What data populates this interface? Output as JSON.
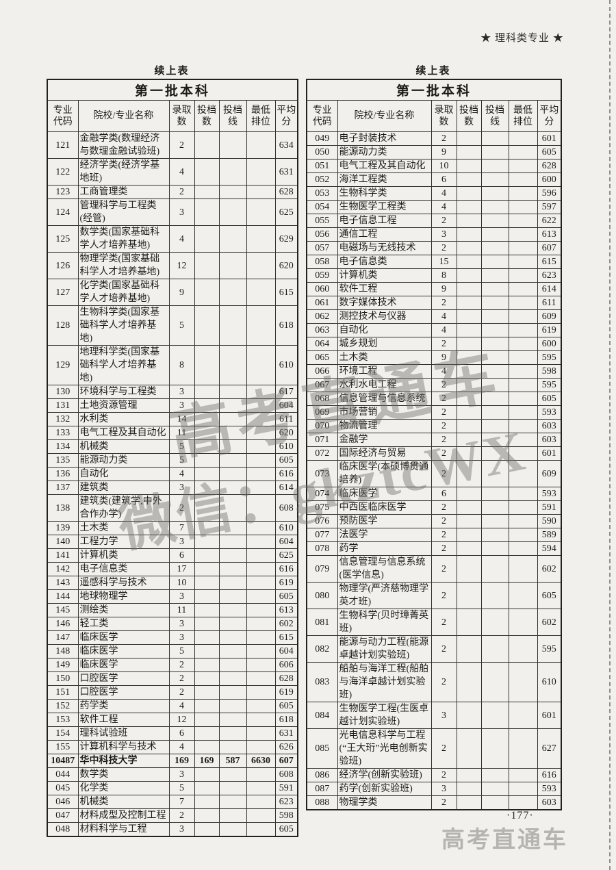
{
  "page": {
    "header_label": "★ 理科类专业 ★",
    "page_number": "·177·",
    "footer_brand": "高考直通车",
    "watermark_line1": "高考直通车",
    "watermark_line2": "微信：gkztcWX"
  },
  "colors": {
    "paper": "#f1f0ed",
    "ink": "#1c1b19",
    "watermark_gray": "#6c6c6a",
    "brand_gray": "#b6b4b0"
  },
  "columns": [
    "专业\n代码",
    "院校/专业名称",
    "录取\n数",
    "投档\n数",
    "投档\n线",
    "最低\n排位",
    "平均\n分"
  ],
  "left_table": {
    "continuation_label": "续上表",
    "title": "第一批本科",
    "rows": [
      {
        "code": "121",
        "name": "金融学类(数理经济与数理金融试验班)",
        "adm": "2",
        "filed": "",
        "line": "",
        "rank": "",
        "avg": "634"
      },
      {
        "code": "122",
        "name": "经济学类(经济学基地班)",
        "adm": "4",
        "filed": "",
        "line": "",
        "rank": "",
        "avg": "631"
      },
      {
        "code": "123",
        "name": "工商管理类",
        "adm": "2",
        "filed": "",
        "line": "",
        "rank": "",
        "avg": "628"
      },
      {
        "code": "124",
        "name": "管理科学与工程类(经管)",
        "adm": "3",
        "filed": "",
        "line": "",
        "rank": "",
        "avg": "625"
      },
      {
        "code": "125",
        "name": "数学类(国家基础科学人才培养基地)",
        "adm": "4",
        "filed": "",
        "line": "",
        "rank": "",
        "avg": "629"
      },
      {
        "code": "126",
        "name": "物理学类(国家基础科学人才培养基地)",
        "adm": "12",
        "filed": "",
        "line": "",
        "rank": "",
        "avg": "620"
      },
      {
        "code": "127",
        "name": "化学类(国家基础科学人才培养基地)",
        "adm": "9",
        "filed": "",
        "line": "",
        "rank": "",
        "avg": "615"
      },
      {
        "code": "128",
        "name": "生物科学类(国家基础科学人才培养基地)",
        "adm": "5",
        "filed": "",
        "line": "",
        "rank": "",
        "avg": "618"
      },
      {
        "code": "129",
        "name": "地理科学类(国家基础科学人才培养基地)",
        "adm": "8",
        "filed": "",
        "line": "",
        "rank": "",
        "avg": "610"
      },
      {
        "code": "130",
        "name": "环境科学与工程类",
        "adm": "3",
        "filed": "",
        "line": "",
        "rank": "",
        "avg": "617"
      },
      {
        "code": "131",
        "name": "土地资源管理",
        "adm": "3",
        "filed": "",
        "line": "",
        "rank": "",
        "avg": "604"
      },
      {
        "code": "132",
        "name": "水利类",
        "adm": "14",
        "filed": "",
        "line": "",
        "rank": "",
        "avg": "611"
      },
      {
        "code": "133",
        "name": "电气工程及其自动化",
        "adm": "11",
        "filed": "",
        "line": "",
        "rank": "",
        "avg": "620"
      },
      {
        "code": "134",
        "name": "机械类",
        "adm": "5",
        "filed": "",
        "line": "",
        "rank": "",
        "avg": "610"
      },
      {
        "code": "135",
        "name": "能源动力类",
        "adm": "5",
        "filed": "",
        "line": "",
        "rank": "",
        "avg": "605"
      },
      {
        "code": "136",
        "name": "自动化",
        "adm": "4",
        "filed": "",
        "line": "",
        "rank": "",
        "avg": "616"
      },
      {
        "code": "137",
        "name": "建筑类",
        "adm": "3",
        "filed": "",
        "line": "",
        "rank": "",
        "avg": "614"
      },
      {
        "code": "138",
        "name": "建筑类(建筑学,中外合作办学)",
        "adm": "2",
        "filed": "",
        "line": "",
        "rank": "",
        "avg": "608"
      },
      {
        "code": "139",
        "name": "土木类",
        "adm": "7",
        "filed": "",
        "line": "",
        "rank": "",
        "avg": "610"
      },
      {
        "code": "140",
        "name": "工程力学",
        "adm": "3",
        "filed": "",
        "line": "",
        "rank": "",
        "avg": "604"
      },
      {
        "code": "141",
        "name": "计算机类",
        "adm": "6",
        "filed": "",
        "line": "",
        "rank": "",
        "avg": "625"
      },
      {
        "code": "142",
        "name": "电子信息类",
        "adm": "17",
        "filed": "",
        "line": "",
        "rank": "",
        "avg": "616"
      },
      {
        "code": "143",
        "name": "遥感科学与技术",
        "adm": "10",
        "filed": "",
        "line": "",
        "rank": "",
        "avg": "619"
      },
      {
        "code": "144",
        "name": "地球物理学",
        "adm": "3",
        "filed": "",
        "line": "",
        "rank": "",
        "avg": "605"
      },
      {
        "code": "145",
        "name": "测绘类",
        "adm": "11",
        "filed": "",
        "line": "",
        "rank": "",
        "avg": "613"
      },
      {
        "code": "146",
        "name": "轻工类",
        "adm": "3",
        "filed": "",
        "line": "",
        "rank": "",
        "avg": "602"
      },
      {
        "code": "147",
        "name": "临床医学",
        "adm": "3",
        "filed": "",
        "line": "",
        "rank": "",
        "avg": "615"
      },
      {
        "code": "148",
        "name": "临床医学",
        "adm": "5",
        "filed": "",
        "line": "",
        "rank": "",
        "avg": "604"
      },
      {
        "code": "149",
        "name": "临床医学",
        "adm": "2",
        "filed": "",
        "line": "",
        "rank": "",
        "avg": "606"
      },
      {
        "code": "150",
        "name": "口腔医学",
        "adm": "2",
        "filed": "",
        "line": "",
        "rank": "",
        "avg": "628"
      },
      {
        "code": "151",
        "name": "口腔医学",
        "adm": "2",
        "filed": "",
        "line": "",
        "rank": "",
        "avg": "619"
      },
      {
        "code": "152",
        "name": "药学类",
        "adm": "4",
        "filed": "",
        "line": "",
        "rank": "",
        "avg": "605"
      },
      {
        "code": "153",
        "name": "软件工程",
        "adm": "12",
        "filed": "",
        "line": "",
        "rank": "",
        "avg": "618"
      },
      {
        "code": "154",
        "name": "理科试验班",
        "adm": "6",
        "filed": "",
        "line": "",
        "rank": "",
        "avg": "631"
      },
      {
        "code": "155",
        "name": "计算机科学与技术",
        "adm": "4",
        "filed": "",
        "line": "",
        "rank": "",
        "avg": "626"
      },
      {
        "code": "10487",
        "name": "华中科技大学",
        "adm": "169",
        "filed": "169",
        "line": "587",
        "rank": "6630",
        "avg": "607",
        "bold": true
      },
      {
        "code": "044",
        "name": "数学类",
        "adm": "3",
        "filed": "",
        "line": "",
        "rank": "",
        "avg": "608"
      },
      {
        "code": "045",
        "name": "化学类",
        "adm": "5",
        "filed": "",
        "line": "",
        "rank": "",
        "avg": "591"
      },
      {
        "code": "046",
        "name": "机械类",
        "adm": "7",
        "filed": "",
        "line": "",
        "rank": "",
        "avg": "623"
      },
      {
        "code": "047",
        "name": "材料成型及控制工程",
        "adm": "2",
        "filed": "",
        "line": "",
        "rank": "",
        "avg": "598"
      },
      {
        "code": "048",
        "name": "材料科学与工程",
        "adm": "3",
        "filed": "",
        "line": "",
        "rank": "",
        "avg": "605"
      }
    ]
  },
  "right_table": {
    "continuation_label": "续上表",
    "title": "第一批本科",
    "rows": [
      {
        "code": "049",
        "name": "电子封装技术",
        "adm": "2",
        "filed": "",
        "line": "",
        "rank": "",
        "avg": "601"
      },
      {
        "code": "050",
        "name": "能源动力类",
        "adm": "9",
        "filed": "",
        "line": "",
        "rank": "",
        "avg": "605"
      },
      {
        "code": "051",
        "name": "电气工程及其自动化",
        "adm": "10",
        "filed": "",
        "line": "",
        "rank": "",
        "avg": "628"
      },
      {
        "code": "052",
        "name": "海洋工程类",
        "adm": "6",
        "filed": "",
        "line": "",
        "rank": "",
        "avg": "600"
      },
      {
        "code": "053",
        "name": "生物科学类",
        "adm": "4",
        "filed": "",
        "line": "",
        "rank": "",
        "avg": "596"
      },
      {
        "code": "054",
        "name": "生物医学工程类",
        "adm": "4",
        "filed": "",
        "line": "",
        "rank": "",
        "avg": "597"
      },
      {
        "code": "055",
        "name": "电子信息工程",
        "adm": "2",
        "filed": "",
        "line": "",
        "rank": "",
        "avg": "622"
      },
      {
        "code": "056",
        "name": "通信工程",
        "adm": "3",
        "filed": "",
        "line": "",
        "rank": "",
        "avg": "613"
      },
      {
        "code": "057",
        "name": "电磁场与无线技术",
        "adm": "2",
        "filed": "",
        "line": "",
        "rank": "",
        "avg": "607"
      },
      {
        "code": "058",
        "name": "电子信息类",
        "adm": "15",
        "filed": "",
        "line": "",
        "rank": "",
        "avg": "615"
      },
      {
        "code": "059",
        "name": "计算机类",
        "adm": "8",
        "filed": "",
        "line": "",
        "rank": "",
        "avg": "623"
      },
      {
        "code": "060",
        "name": "软件工程",
        "adm": "9",
        "filed": "",
        "line": "",
        "rank": "",
        "avg": "614"
      },
      {
        "code": "061",
        "name": "数字媒体技术",
        "adm": "2",
        "filed": "",
        "line": "",
        "rank": "",
        "avg": "611"
      },
      {
        "code": "062",
        "name": "测控技术与仪器",
        "adm": "4",
        "filed": "",
        "line": "",
        "rank": "",
        "avg": "609"
      },
      {
        "code": "063",
        "name": "自动化",
        "adm": "4",
        "filed": "",
        "line": "",
        "rank": "",
        "avg": "619"
      },
      {
        "code": "064",
        "name": "城乡规划",
        "adm": "2",
        "filed": "",
        "line": "",
        "rank": "",
        "avg": "600"
      },
      {
        "code": "065",
        "name": "土木类",
        "adm": "9",
        "filed": "",
        "line": "",
        "rank": "",
        "avg": "595"
      },
      {
        "code": "066",
        "name": "环境工程",
        "adm": "4",
        "filed": "",
        "line": "",
        "rank": "",
        "avg": "598"
      },
      {
        "code": "067",
        "name": "水利水电工程",
        "adm": "2",
        "filed": "",
        "line": "",
        "rank": "",
        "avg": "595"
      },
      {
        "code": "068",
        "name": "信息管理与信息系统",
        "adm": "2",
        "filed": "",
        "line": "",
        "rank": "",
        "avg": "605"
      },
      {
        "code": "069",
        "name": "市场营销",
        "adm": "2",
        "filed": "",
        "line": "",
        "rank": "",
        "avg": "593"
      },
      {
        "code": "070",
        "name": "物流管理",
        "adm": "2",
        "filed": "",
        "line": "",
        "rank": "",
        "avg": "603"
      },
      {
        "code": "071",
        "name": "金融学",
        "adm": "2",
        "filed": "",
        "line": "",
        "rank": "",
        "avg": "603"
      },
      {
        "code": "072",
        "name": "国际经济与贸易",
        "adm": "2",
        "filed": "",
        "line": "",
        "rank": "",
        "avg": "601"
      },
      {
        "code": "073",
        "name": "临床医学(本硕博贯通培养)",
        "adm": "2",
        "filed": "",
        "line": "",
        "rank": "",
        "avg": "609"
      },
      {
        "code": "074",
        "name": "临床医学",
        "adm": "6",
        "filed": "",
        "line": "",
        "rank": "",
        "avg": "593"
      },
      {
        "code": "075",
        "name": "中西医临床医学",
        "adm": "2",
        "filed": "",
        "line": "",
        "rank": "",
        "avg": "591"
      },
      {
        "code": "076",
        "name": "预防医学",
        "adm": "2",
        "filed": "",
        "line": "",
        "rank": "",
        "avg": "590"
      },
      {
        "code": "077",
        "name": "法医学",
        "adm": "2",
        "filed": "",
        "line": "",
        "rank": "",
        "avg": "589"
      },
      {
        "code": "078",
        "name": "药学",
        "adm": "2",
        "filed": "",
        "line": "",
        "rank": "",
        "avg": "594"
      },
      {
        "code": "079",
        "name": "信息管理与信息系统(医学信息)",
        "adm": "2",
        "filed": "",
        "line": "",
        "rank": "",
        "avg": "602"
      },
      {
        "code": "080",
        "name": "物理学(严济慈物理学英才班)",
        "adm": "2",
        "filed": "",
        "line": "",
        "rank": "",
        "avg": "605"
      },
      {
        "code": "081",
        "name": "生物科学(贝时璋菁英班)",
        "adm": "2",
        "filed": "",
        "line": "",
        "rank": "",
        "avg": "602"
      },
      {
        "code": "082",
        "name": "能源与动力工程(能源卓越计划实验班)",
        "adm": "2",
        "filed": "",
        "line": "",
        "rank": "",
        "avg": "595"
      },
      {
        "code": "083",
        "name": "船舶与海洋工程(船舶与海洋卓越计划实验班)",
        "adm": "2",
        "filed": "",
        "line": "",
        "rank": "",
        "avg": "610"
      },
      {
        "code": "084",
        "name": "生物医学工程(生医卓越计划实验班)",
        "adm": "3",
        "filed": "",
        "line": "",
        "rank": "",
        "avg": "601"
      },
      {
        "code": "085",
        "name": "光电信息科学与工程(“王大珩”光电创新实验班)",
        "adm": "2",
        "filed": "",
        "line": "",
        "rank": "",
        "avg": "627"
      },
      {
        "code": "086",
        "name": "经济学(创新实验班)",
        "adm": "2",
        "filed": "",
        "line": "",
        "rank": "",
        "avg": "616"
      },
      {
        "code": "087",
        "name": "药学(创新实验班)",
        "adm": "3",
        "filed": "",
        "line": "",
        "rank": "",
        "avg": "593"
      },
      {
        "code": "088",
        "name": "物理学类",
        "adm": "2",
        "filed": "",
        "line": "",
        "rank": "",
        "avg": "603"
      }
    ]
  }
}
